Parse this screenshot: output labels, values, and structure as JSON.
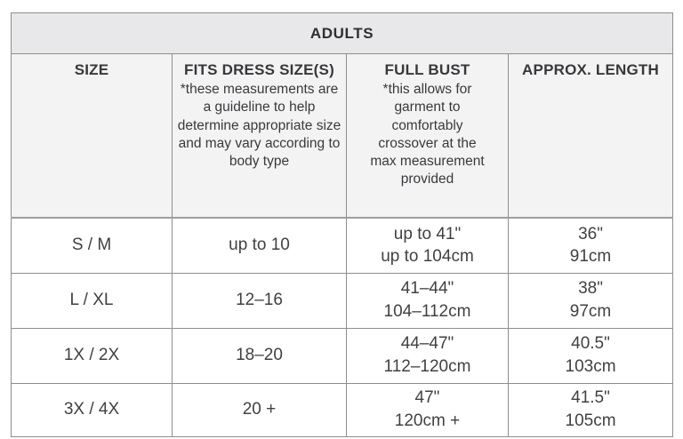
{
  "chart_data": {
    "type": "table",
    "title": "ADULTS",
    "columns": [
      {
        "label": "SIZE",
        "note": ""
      },
      {
        "label": "FITS DRESS SIZE(S)",
        "note": "*these measurements are a guideline to help determine appropriate size and may vary according to body type"
      },
      {
        "label": "FULL BUST",
        "note": "*this allows for garment to comfortably crossover at the max measurement provided"
      },
      {
        "label": "APPROX. LENGTH",
        "note": ""
      }
    ],
    "rows": [
      {
        "size": "S / M",
        "dress_size": "up to 10",
        "bust_in": "up to 41\"",
        "bust_cm": "up to 104cm",
        "length_in": "36\"",
        "length_cm": "91cm"
      },
      {
        "size": "L / XL",
        "dress_size": "12–16",
        "bust_in": "41–44\"",
        "bust_cm": "104–112cm",
        "length_in": "38\"",
        "length_cm": "97cm"
      },
      {
        "size": "1X / 2X",
        "dress_size": "18–20",
        "bust_in": "44–47\"",
        "bust_cm": "112–120cm",
        "length_in": "40.5\"",
        "length_cm": "103cm"
      },
      {
        "size": "3X / 4X",
        "dress_size": "20 +",
        "bust_in": "47\"",
        "bust_cm": "120cm +",
        "length_in": "41.5\"",
        "length_cm": "105cm"
      }
    ],
    "layout": {
      "grid": "on",
      "title_position": "top-merged-row"
    }
  },
  "colors": {
    "title_row_bg": "#e8e8ea",
    "header_row_bg": "#f3f3f3",
    "data_row_bg": "#ffffff",
    "border": "#8e8e8e",
    "header_text": "#38383b",
    "data_text": "#414144"
  }
}
